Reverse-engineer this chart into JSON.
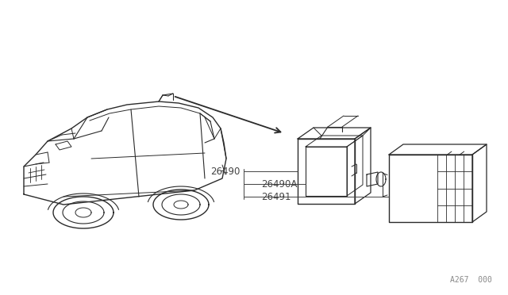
{
  "bg_color": "#ffffff",
  "line_color": "#2a2a2a",
  "label_color": "#444444",
  "watermark": "A267  000",
  "fig_width": 6.4,
  "fig_height": 3.72,
  "dpi": 100
}
